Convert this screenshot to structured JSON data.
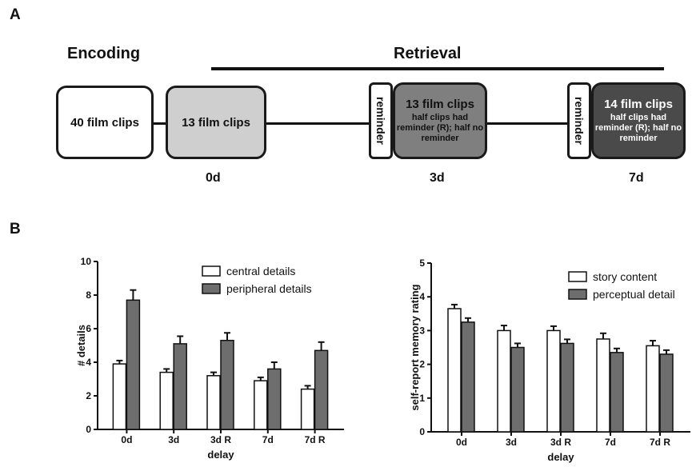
{
  "panel_a": {
    "letter": "A",
    "encoding_label": "Encoding",
    "retrieval_label": "Retrieval",
    "boxes": [
      {
        "main": "40 film clips",
        "sub": "",
        "fill": "#ffffff",
        "text_color": "#111111"
      },
      {
        "main": "13 film clips",
        "sub": "",
        "fill": "#cfcfcf",
        "text_color": "#111111"
      },
      {
        "main": "13 film clips",
        "sub": "half clips had reminder (R); half no reminder",
        "fill": "#7f7f7f",
        "text_color": "#111111"
      },
      {
        "main": "14 film clips",
        "sub": "half clips had reminder (R); half no reminder",
        "fill": "#4a4a4a",
        "text_color": "#ffffff"
      }
    ],
    "reminder_label": "reminder",
    "days": [
      "0d",
      "3d",
      "7d"
    ]
  },
  "panel_b": {
    "letter": "B"
  },
  "chart_data": [
    {
      "type": "bar",
      "categories": [
        "0d",
        "3d",
        "3d R",
        "7d",
        "7d R"
      ],
      "xlabel": "delay",
      "ylabel": "# details",
      "ylim": [
        0,
        10
      ],
      "yticks": [
        0,
        2,
        4,
        6,
        8,
        10
      ],
      "legend_position": "top-right",
      "series": [
        {
          "name": "central details",
          "color": "#ffffff",
          "values": [
            3.9,
            3.4,
            3.2,
            2.9,
            2.4
          ],
          "errors": [
            0.2,
            0.2,
            0.2,
            0.2,
            0.2
          ]
        },
        {
          "name": "peripheral details",
          "color": "#6e6e6e",
          "values": [
            7.7,
            5.1,
            5.3,
            3.6,
            4.7
          ],
          "errors": [
            0.6,
            0.45,
            0.45,
            0.4,
            0.5
          ]
        }
      ]
    },
    {
      "type": "bar",
      "categories": [
        "0d",
        "3d",
        "3d R",
        "7d",
        "7d R"
      ],
      "xlabel": "delay",
      "ylabel": "self-report memory rating",
      "ylim": [
        0,
        5
      ],
      "yticks": [
        0,
        1,
        2,
        3,
        4,
        5
      ],
      "legend_position": "top-right",
      "series": [
        {
          "name": "story content",
          "color": "#ffffff",
          "values": [
            3.65,
            3.0,
            3.0,
            2.75,
            2.55
          ],
          "errors": [
            0.12,
            0.15,
            0.13,
            0.17,
            0.15
          ]
        },
        {
          "name": "perceptual detail",
          "color": "#6e6e6e",
          "values": [
            3.25,
            2.5,
            2.62,
            2.35,
            2.3
          ],
          "errors": [
            0.12,
            0.12,
            0.12,
            0.12,
            0.12
          ]
        }
      ]
    }
  ]
}
